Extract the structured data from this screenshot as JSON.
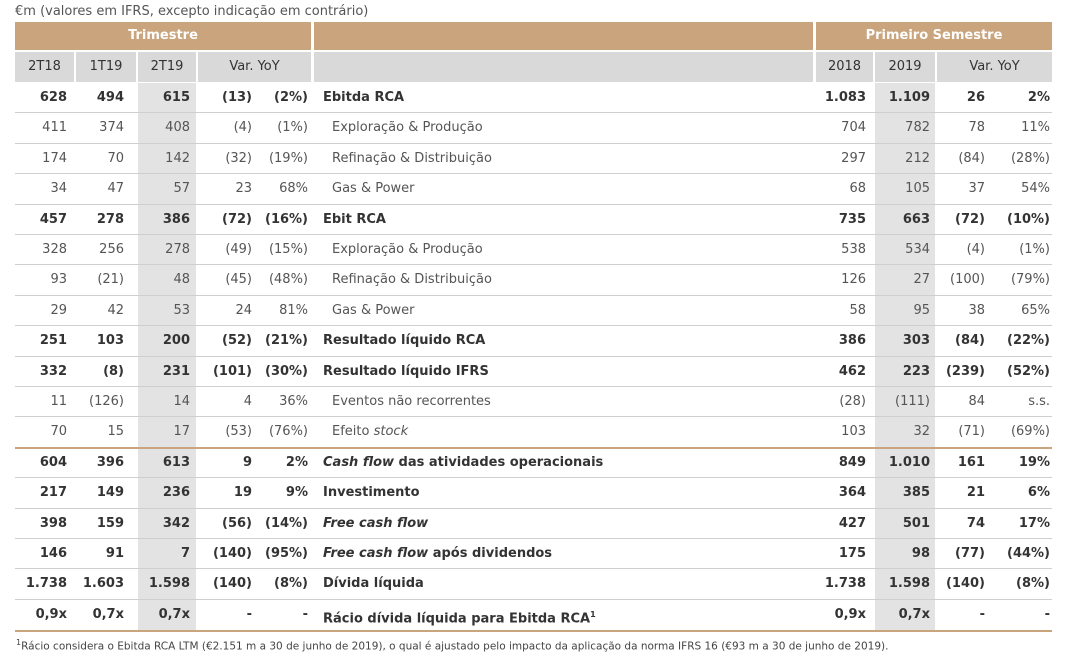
{
  "caption": "€m (valores em IFRS, excepto indicação em contrário)",
  "header": {
    "quarter_group": "Trimestre",
    "semester_group": "Primeiro Semestre",
    "quarter_columns": [
      "2T18",
      "1T19",
      "2T19",
      "Var. YoY"
    ],
    "semester_columns": [
      "2018",
      "2019",
      "Var. YoY"
    ]
  },
  "table": {
    "rows": [
      {
        "quarter": [
          "628",
          "494",
          "615",
          "(13)",
          "(2%)"
        ],
        "label": [
          {
            "text": "Ebitda RCA"
          }
        ],
        "semester": [
          "1.083",
          "1.109",
          "26",
          "2%"
        ],
        "bold": true
      },
      {
        "quarter": [
          "411",
          "374",
          "408",
          "(4)",
          "(1%)"
        ],
        "label": [
          {
            "text": "Exploração & Produção"
          }
        ],
        "semester": [
          "704",
          "782",
          "78",
          "11%"
        ],
        "indent": true
      },
      {
        "quarter": [
          "174",
          "70",
          "142",
          "(32)",
          "(19%)"
        ],
        "label": [
          {
            "text": "Refinação & Distribuição"
          }
        ],
        "semester": [
          "297",
          "212",
          "(84)",
          "(28%)"
        ],
        "indent": true
      },
      {
        "quarter": [
          "34",
          "47",
          "57",
          "23",
          "68%"
        ],
        "label": [
          {
            "text": "Gas & Power"
          }
        ],
        "semester": [
          "68",
          "105",
          "37",
          "54%"
        ],
        "indent": true
      },
      {
        "quarter": [
          "457",
          "278",
          "386",
          "(72)",
          "(16%)"
        ],
        "label": [
          {
            "text": "Ebit RCA"
          }
        ],
        "semester": [
          "735",
          "663",
          "(72)",
          "(10%)"
        ],
        "bold": true
      },
      {
        "quarter": [
          "328",
          "256",
          "278",
          "(49)",
          "(15%)"
        ],
        "label": [
          {
            "text": "Exploração & Produção"
          }
        ],
        "semester": [
          "538",
          "534",
          "(4)",
          "(1%)"
        ],
        "indent": true
      },
      {
        "quarter": [
          "93",
          "(21)",
          "48",
          "(45)",
          "(48%)"
        ],
        "label": [
          {
            "text": "Refinação & Distribuição"
          }
        ],
        "semester": [
          "126",
          "27",
          "(100)",
          "(79%)"
        ],
        "indent": true
      },
      {
        "quarter": [
          "29",
          "42",
          "53",
          "24",
          "81%"
        ],
        "label": [
          {
            "text": "Gas & Power"
          }
        ],
        "semester": [
          "58",
          "95",
          "38",
          "65%"
        ],
        "indent": true
      },
      {
        "quarter": [
          "251",
          "103",
          "200",
          "(52)",
          "(21%)"
        ],
        "label": [
          {
            "text": "Resultado líquido RCA"
          }
        ],
        "semester": [
          "386",
          "303",
          "(84)",
          "(22%)"
        ],
        "bold": true
      },
      {
        "quarter": [
          "332",
          "(8)",
          "231",
          "(101)",
          "(30%)"
        ],
        "label": [
          {
            "text": "Resultado líquido IFRS"
          }
        ],
        "semester": [
          "462",
          "223",
          "(239)",
          "(52%)"
        ],
        "bold": true
      },
      {
        "quarter": [
          "11",
          "(126)",
          "14",
          "4",
          "36%"
        ],
        "label": [
          {
            "text": "Eventos não recorrentes"
          }
        ],
        "semester": [
          "(28)",
          "(111)",
          "84",
          "s.s."
        ],
        "indent": true
      },
      {
        "quarter": [
          "70",
          "15",
          "17",
          "(53)",
          "(76%)"
        ],
        "label": [
          {
            "text": "Efeito "
          },
          {
            "text": "stock",
            "italic": true
          }
        ],
        "semester": [
          "103",
          "32",
          "(71)",
          "(69%)"
        ],
        "indent": true,
        "rule_below": true
      },
      {
        "quarter": [
          "604",
          "396",
          "613",
          "9",
          "2%"
        ],
        "label": [
          {
            "text": "Cash flow",
            "italic": true
          },
          {
            "text": " das atividades operacionais"
          }
        ],
        "semester": [
          "849",
          "1.010",
          "161",
          "19%"
        ],
        "bold": true
      },
      {
        "quarter": [
          "217",
          "149",
          "236",
          "19",
          "9%"
        ],
        "label": [
          {
            "text": "Investimento"
          }
        ],
        "semester": [
          "364",
          "385",
          "21",
          "6%"
        ],
        "bold": true
      },
      {
        "quarter": [
          "398",
          "159",
          "342",
          "(56)",
          "(14%)"
        ],
        "label": [
          {
            "text": "Free cash flow",
            "italic": true
          }
        ],
        "semester": [
          "427",
          "501",
          "74",
          "17%"
        ],
        "bold": true
      },
      {
        "quarter": [
          "146",
          "91",
          "7",
          "(140)",
          "(95%)"
        ],
        "label": [
          {
            "text": "Free cash flow",
            "italic": true
          },
          {
            "text": " após dividendos"
          }
        ],
        "semester": [
          "175",
          "98",
          "(77)",
          "(44%)"
        ],
        "bold": true
      },
      {
        "quarter": [
          "1.738",
          "1.603",
          "1.598",
          "(140)",
          "(8%)"
        ],
        "label": [
          {
            "text": "Dívida líquida"
          }
        ],
        "semester": [
          "1.738",
          "1.598",
          "(140)",
          "(8%)"
        ],
        "bold": true
      },
      {
        "quarter": [
          "0,9x",
          "0,7x",
          "0,7x",
          "-",
          "-"
        ],
        "label": [
          {
            "text": "Rácio dívida líquida para Ebitda RCA"
          },
          {
            "text": "1",
            "sup": true
          }
        ],
        "semester": [
          "0,9x",
          "0,7x",
          "-",
          "-"
        ],
        "bold": true
      }
    ]
  },
  "footnote": {
    "marker": "1",
    "text": "Rácio considera o Ebitda RCA LTM (€2.151 m a 30 de junho de 2019), o qual é ajustado pelo impacto da aplicação da norma IFRS 16 (€93 m a 30 de junho de 2019)."
  }
}
